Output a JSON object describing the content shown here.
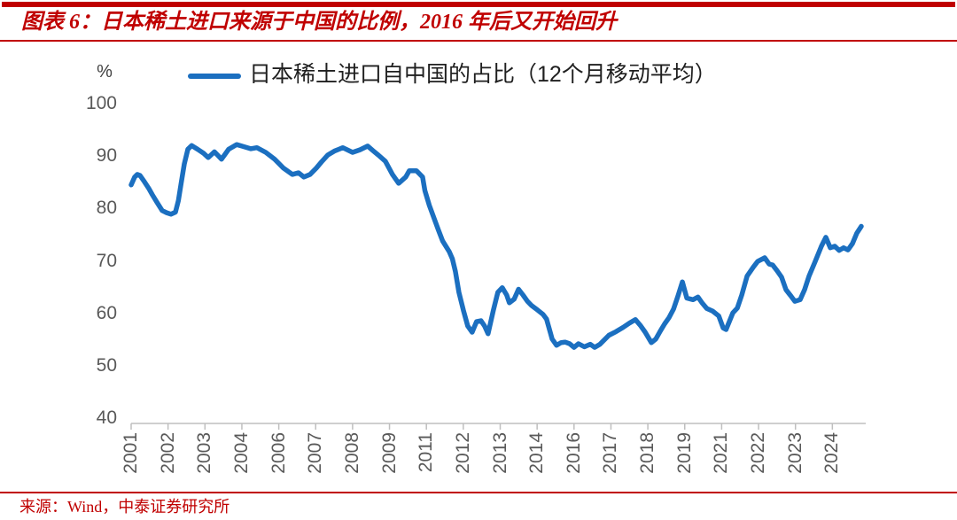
{
  "figure": {
    "title": "图表 6：日本稀土进口来源于中国的比例，2016 年后又开始回升",
    "source": "来源：Wind，中泰证券研究所",
    "accent_color": "#C00000"
  },
  "chart_data": {
    "type": "line",
    "title": "",
    "legend_position": "top",
    "grid": false,
    "ylabel": "%",
    "ylim": [
      40,
      100
    ],
    "y_ticks": [
      100,
      90,
      80,
      70,
      60,
      50,
      40
    ],
    "x_tick_labels": [
      "2001",
      "2002",
      "2003",
      "2004",
      "2006",
      "2007",
      "2008",
      "2009",
      "2011",
      "2012",
      "2013",
      "2014",
      "2016",
      "2017",
      "2018",
      "2019",
      "2021",
      "2022",
      "2023",
      "2024"
    ],
    "x_tick_interval_years": 1.25,
    "x_range": [
      2001.0,
      2025.9
    ],
    "line_color": "#1B6FC0",
    "axis_color": "#BFBFBF",
    "tick_label_color": "#595959",
    "series": [
      {
        "name": "日本稀土进口自中国的占比（12个月移动平均）",
        "points": [
          [
            2001.0,
            84.5
          ],
          [
            2001.12,
            86.0
          ],
          [
            2001.21,
            86.5
          ],
          [
            2001.3,
            86.3
          ],
          [
            2001.45,
            85.1
          ],
          [
            2001.6,
            83.8
          ],
          [
            2001.72,
            82.6
          ],
          [
            2001.87,
            81.2
          ],
          [
            2002.05,
            79.6
          ],
          [
            2002.2,
            79.2
          ],
          [
            2002.35,
            78.9
          ],
          [
            2002.5,
            79.3
          ],
          [
            2002.6,
            81.5
          ],
          [
            2002.7,
            85.0
          ],
          [
            2002.8,
            88.5
          ],
          [
            2002.92,
            91.3
          ],
          [
            2003.05,
            92.0
          ],
          [
            2003.25,
            91.3
          ],
          [
            2003.46,
            90.5
          ],
          [
            2003.61,
            89.7
          ],
          [
            2003.82,
            90.8
          ],
          [
            2004.06,
            89.4
          ],
          [
            2004.3,
            91.3
          ],
          [
            2004.57,
            92.2
          ],
          [
            2004.75,
            91.9
          ],
          [
            2005.05,
            91.4
          ],
          [
            2005.26,
            91.6
          ],
          [
            2005.56,
            90.7
          ],
          [
            2005.86,
            89.4
          ],
          [
            2006.16,
            87.7
          ],
          [
            2006.46,
            86.5
          ],
          [
            2006.67,
            86.8
          ],
          [
            2006.85,
            86.0
          ],
          [
            2007.06,
            86.5
          ],
          [
            2007.27,
            87.7
          ],
          [
            2007.45,
            88.9
          ],
          [
            2007.66,
            90.2
          ],
          [
            2007.9,
            91.0
          ],
          [
            2008.17,
            91.6
          ],
          [
            2008.5,
            90.7
          ],
          [
            2008.75,
            91.2
          ],
          [
            2009.01,
            91.9
          ],
          [
            2009.2,
            91.0
          ],
          [
            2009.37,
            90.2
          ],
          [
            2009.61,
            89.0
          ],
          [
            2009.85,
            86.5
          ],
          [
            2010.06,
            84.8
          ],
          [
            2010.3,
            86.0
          ],
          [
            2010.42,
            87.2
          ],
          [
            2010.66,
            87.2
          ],
          [
            2010.87,
            86.0
          ],
          [
            2010.95,
            83.4
          ],
          [
            2011.1,
            80.6
          ],
          [
            2011.25,
            78.3
          ],
          [
            2011.4,
            76.0
          ],
          [
            2011.55,
            73.8
          ],
          [
            2011.77,
            71.8
          ],
          [
            2011.88,
            70.4
          ],
          [
            2011.98,
            68.0
          ],
          [
            2012.1,
            64.0
          ],
          [
            2012.25,
            60.6
          ],
          [
            2012.4,
            57.6
          ],
          [
            2012.55,
            56.4
          ],
          [
            2012.7,
            58.4
          ],
          [
            2012.85,
            58.6
          ],
          [
            2012.97,
            57.6
          ],
          [
            2013.09,
            56.1
          ],
          [
            2013.27,
            60.6
          ],
          [
            2013.42,
            64.0
          ],
          [
            2013.57,
            64.9
          ],
          [
            2013.72,
            63.5
          ],
          [
            2013.81,
            62.0
          ],
          [
            2013.97,
            62.7
          ],
          [
            2014.12,
            64.6
          ],
          [
            2014.27,
            63.5
          ],
          [
            2014.42,
            62.3
          ],
          [
            2014.56,
            61.5
          ],
          [
            2014.77,
            60.6
          ],
          [
            2014.95,
            59.8
          ],
          [
            2015.07,
            58.9
          ],
          [
            2015.17,
            56.9
          ],
          [
            2015.26,
            55.1
          ],
          [
            2015.41,
            53.9
          ],
          [
            2015.56,
            54.4
          ],
          [
            2015.7,
            54.5
          ],
          [
            2015.85,
            54.2
          ],
          [
            2016.0,
            53.5
          ],
          [
            2016.15,
            54.2
          ],
          [
            2016.35,
            53.6
          ],
          [
            2016.55,
            54.1
          ],
          [
            2016.7,
            53.5
          ],
          [
            2016.88,
            54.1
          ],
          [
            2017.18,
            55.8
          ],
          [
            2017.42,
            56.5
          ],
          [
            2017.66,
            57.3
          ],
          [
            2017.87,
            58.1
          ],
          [
            2018.08,
            58.8
          ],
          [
            2018.26,
            57.6
          ],
          [
            2018.41,
            56.4
          ],
          [
            2018.62,
            54.4
          ],
          [
            2018.77,
            55.1
          ],
          [
            2018.92,
            56.6
          ],
          [
            2019.07,
            58.0
          ],
          [
            2019.22,
            59.2
          ],
          [
            2019.37,
            60.8
          ],
          [
            2019.52,
            63.3
          ],
          [
            2019.67,
            66.0
          ],
          [
            2019.82,
            62.9
          ],
          [
            2020.03,
            62.6
          ],
          [
            2020.2,
            63.1
          ],
          [
            2020.35,
            61.9
          ],
          [
            2020.5,
            60.9
          ],
          [
            2020.7,
            60.4
          ],
          [
            2020.9,
            59.5
          ],
          [
            2021.05,
            57.2
          ],
          [
            2021.15,
            56.9
          ],
          [
            2021.38,
            60.1
          ],
          [
            2021.53,
            61.0
          ],
          [
            2021.68,
            63.5
          ],
          [
            2021.86,
            67.1
          ],
          [
            2022.07,
            68.8
          ],
          [
            2022.22,
            69.9
          ],
          [
            2022.46,
            70.6
          ],
          [
            2022.61,
            69.4
          ],
          [
            2022.73,
            69.2
          ],
          [
            2022.88,
            68.1
          ],
          [
            2023.03,
            66.9
          ],
          [
            2023.18,
            64.5
          ],
          [
            2023.36,
            63.2
          ],
          [
            2023.48,
            62.3
          ],
          [
            2023.66,
            62.6
          ],
          [
            2023.81,
            64.5
          ],
          [
            2023.96,
            67.1
          ],
          [
            2024.17,
            69.9
          ],
          [
            2024.38,
            72.8
          ],
          [
            2024.53,
            74.5
          ],
          [
            2024.68,
            72.5
          ],
          [
            2024.83,
            72.8
          ],
          [
            2024.98,
            72.0
          ],
          [
            2025.13,
            72.5
          ],
          [
            2025.28,
            72.1
          ],
          [
            2025.43,
            73.3
          ],
          [
            2025.58,
            75.3
          ],
          [
            2025.73,
            76.6
          ]
        ]
      }
    ]
  }
}
